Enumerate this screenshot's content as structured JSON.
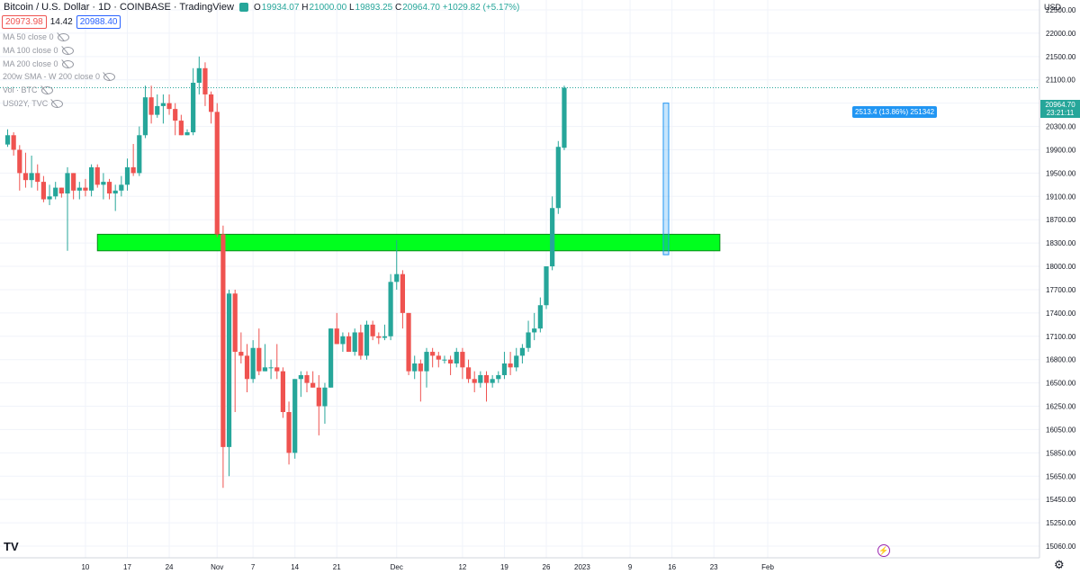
{
  "header": {
    "title": "Bitcoin / U.S. Dollar · 1D · COINBASE · TradingView",
    "ohlc": [
      {
        "key": "O",
        "value": "19934.07"
      },
      {
        "key": "H",
        "value": "21000.00"
      },
      {
        "key": "L",
        "value": "19893.25"
      },
      {
        "key": "C",
        "value": "20964.70"
      }
    ],
    "change": "+1029.82 (+5.17%)",
    "sell": "20973.98",
    "spread": "14.42",
    "buy": "20988.40"
  },
  "indicators": [
    "MA 50 close 0",
    "MA 100 close 0",
    "MA 200 close 0",
    "200w SMA - W 200 close 0",
    "Vol · BTC",
    "US02Y, TVC"
  ],
  "currency": "USD",
  "last_price": {
    "value": "20964.70",
    "timer": "23:21:11"
  },
  "measure_label": "2513.4 (13.86%) 251342",
  "icons": {
    "logo": "tradingview-logo-icon",
    "flash": "lightning-icon",
    "settings": "gear-icon"
  },
  "colors": {
    "up": "#26a69a",
    "down": "#ef5350",
    "zone": "#00ff1e",
    "measure": "#2196f3"
  },
  "chart_data": {
    "type": "candlestick",
    "y_ticks": [
      "15060.00",
      "15250.00",
      "15450.00",
      "15650.00",
      "15850.00",
      "16050.00",
      "16250.00",
      "16500.00",
      "16800.00",
      "17100.00",
      "17400.00",
      "17700.00",
      "18000.00",
      "18300.00",
      "18700.00",
      "19100.00",
      "19500.00",
      "19900.00",
      "20300.00",
      "20700.00",
      "21100.00",
      "21500.00",
      "22000.00",
      "22500.00"
    ],
    "x_ticks": [
      {
        "label": "10",
        "date": "2022-10-10"
      },
      {
        "label": "17",
        "date": "2022-10-17"
      },
      {
        "label": "24",
        "date": "2022-10-24"
      },
      {
        "label": "Nov",
        "date": "2022-11-01"
      },
      {
        "label": "7",
        "date": "2022-11-07"
      },
      {
        "label": "14",
        "date": "2022-11-14"
      },
      {
        "label": "21",
        "date": "2022-11-21"
      },
      {
        "label": "Dec",
        "date": "2022-12-01"
      },
      {
        "label": "12",
        "date": "2022-12-12"
      },
      {
        "label": "19",
        "date": "2022-12-19"
      },
      {
        "label": "26",
        "date": "2022-12-26"
      },
      {
        "label": "2023",
        "date": "2023-01-01"
      },
      {
        "label": "9",
        "date": "2023-01-09"
      },
      {
        "label": "16",
        "date": "2023-01-16"
      },
      {
        "label": "23",
        "date": "2023-01-23"
      },
      {
        "label": "Feb",
        "date": "2023-02-01"
      }
    ],
    "first_date": "2022-09-27",
    "candles": [
      [
        19990,
        20250,
        19950,
        20150
      ],
      [
        20150,
        20200,
        19800,
        19900
      ],
      [
        19900,
        19980,
        19200,
        19500
      ],
      [
        19500,
        19850,
        19250,
        19380
      ],
      [
        19380,
        19800,
        19250,
        19500
      ],
      [
        19500,
        19650,
        19200,
        19350
      ],
      [
        19350,
        19450,
        19000,
        19050
      ],
      [
        19050,
        19300,
        18950,
        19100
      ],
      [
        19100,
        19350,
        19050,
        19250
      ],
      [
        19250,
        19250,
        19080,
        19150
      ],
      [
        19150,
        19600,
        18200,
        19500
      ],
      [
        19500,
        19500,
        19050,
        19200
      ],
      [
        19200,
        19350,
        19050,
        19250
      ],
      [
        19250,
        19400,
        19100,
        19200
      ],
      [
        19200,
        19650,
        19100,
        19600
      ],
      [
        19600,
        19650,
        19250,
        19300
      ],
      [
        19300,
        19500,
        19050,
        19350
      ],
      [
        19350,
        19400,
        19050,
        19150
      ],
      [
        19150,
        19300,
        18850,
        19200
      ],
      [
        19200,
        19450,
        19100,
        19300
      ],
      [
        19300,
        19750,
        19200,
        19600
      ],
      [
        19600,
        20000,
        19450,
        19500
      ],
      [
        19500,
        20300,
        19450,
        20150
      ],
      [
        20150,
        21000,
        20100,
        20800
      ],
      [
        20800,
        21000,
        20350,
        20500
      ],
      [
        20500,
        20850,
        20450,
        20650
      ],
      [
        20650,
        20850,
        20350,
        20700
      ],
      [
        20700,
        20850,
        20500,
        20600
      ],
      [
        20600,
        20700,
        20150,
        20400
      ],
      [
        20400,
        20500,
        20150,
        20150
      ],
      [
        20150,
        20250,
        20150,
        20200
      ],
      [
        20200,
        21300,
        20150,
        21050
      ],
      [
        21050,
        21500,
        20850,
        21300
      ],
      [
        21300,
        21400,
        20650,
        20850
      ],
      [
        20850,
        20900,
        20350,
        20550
      ],
      [
        20550,
        20700,
        18400,
        18450
      ],
      [
        18450,
        18600,
        15550,
        15900
      ],
      [
        15900,
        17700,
        15650,
        17650
      ],
      [
        17650,
        17700,
        16200,
        16900
      ],
      [
        16900,
        17150,
        16750,
        16850
      ],
      [
        16850,
        17000,
        16400,
        16550
      ],
      [
        16550,
        17050,
        16500,
        16950
      ],
      [
        16950,
        17200,
        16600,
        16650
      ],
      [
        16650,
        17000,
        16650,
        16700
      ],
      [
        16700,
        16800,
        16550,
        16700
      ],
      [
        16700,
        17000,
        16550,
        16650
      ],
      [
        16650,
        16700,
        16150,
        16200
      ],
      [
        16200,
        16300,
        15750,
        15850
      ],
      [
        15850,
        16550,
        15800,
        16550
      ],
      [
        16550,
        16650,
        16350,
        16600
      ],
      [
        16600,
        16650,
        16400,
        16500
      ],
      [
        16500,
        16650,
        16450,
        16450
      ],
      [
        16450,
        16600,
        16000,
        16250
      ],
      [
        16250,
        16500,
        16100,
        16450
      ],
      [
        16450,
        17200,
        16450,
        17200
      ],
      [
        17200,
        17400,
        17000,
        17000
      ],
      [
        17000,
        17150,
        16900,
        17100
      ],
      [
        17100,
        17150,
        16900,
        16900
      ],
      [
        16900,
        17200,
        16850,
        17150
      ],
      [
        17150,
        17250,
        16800,
        16850
      ],
      [
        16850,
        17300,
        16800,
        17250
      ],
      [
        17250,
        17300,
        17050,
        17100
      ],
      [
        17100,
        17150,
        17000,
        17080
      ],
      [
        17080,
        17250,
        17050,
        17100
      ],
      [
        17100,
        17900,
        17050,
        17800
      ],
      [
        17800,
        18350,
        17700,
        17900
      ],
      [
        17900,
        17950,
        17200,
        17400
      ],
      [
        17400,
        17400,
        16600,
        16650
      ],
      [
        16650,
        16850,
        16550,
        16750
      ],
      [
        16750,
        16800,
        16300,
        16650
      ],
      [
        16650,
        16950,
        16450,
        16900
      ],
      [
        16900,
        16950,
        16700,
        16850
      ],
      [
        16850,
        16900,
        16700,
        16800
      ],
      [
        16800,
        16850,
        16750,
        16800
      ],
      [
        16800,
        16850,
        16600,
        16750
      ],
      [
        16750,
        16950,
        16700,
        16900
      ],
      [
        16900,
        16950,
        16550,
        16700
      ],
      [
        16700,
        16800,
        16500,
        16550
      ],
      [
        16550,
        16650,
        16400,
        16500
      ],
      [
        16500,
        16650,
        16450,
        16600
      ],
      [
        16600,
        16650,
        16300,
        16500
      ],
      [
        16500,
        16600,
        16450,
        16550
      ],
      [
        16550,
        16650,
        16500,
        16600
      ],
      [
        16600,
        16900,
        16550,
        16750
      ],
      [
        16750,
        16900,
        16600,
        16700
      ],
      [
        16700,
        16950,
        16650,
        16850
      ],
      [
        16850,
        17000,
        16750,
        16950
      ],
      [
        16950,
        17300,
        16900,
        17150
      ],
      [
        17150,
        17400,
        17050,
        17200
      ],
      [
        17200,
        17600,
        17150,
        17500
      ],
      [
        17500,
        18000,
        17450,
        18000
      ],
      [
        18000,
        19100,
        17950,
        18900
      ],
      [
        18900,
        20050,
        18800,
        19950
      ],
      [
        19934.07,
        21000,
        19893.25,
        20964.7
      ]
    ],
    "support_zone": {
      "low": 18200,
      "high": 18450,
      "from": "2022-10-12",
      "to": "2023-01-24"
    },
    "measure": {
      "from": 18150,
      "to": 20700,
      "date": "2023-01-15"
    },
    "last_price_line": 20964.7
  }
}
